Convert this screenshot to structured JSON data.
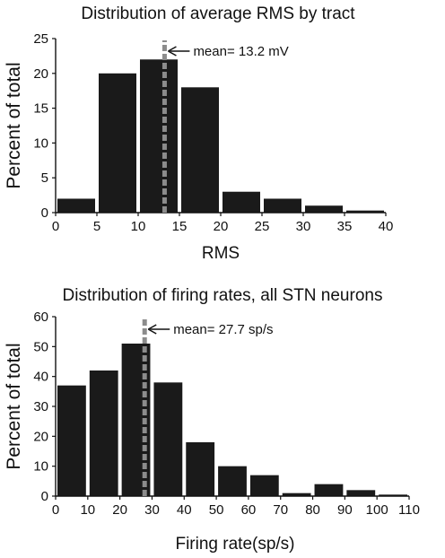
{
  "chart_data": [
    {
      "type": "bar",
      "title": "Distribution of average RMS by tract",
      "xlabel": "RMS",
      "ylabel": "Percent of total",
      "xlim": [
        0,
        40
      ],
      "ylim": [
        0,
        25
      ],
      "xticks": [
        0,
        5,
        10,
        15,
        20,
        25,
        30,
        35,
        40
      ],
      "yticks": [
        0,
        5,
        10,
        15,
        20,
        25
      ],
      "bin_width": 5,
      "bins": [
        {
          "x": 2.5,
          "value": 2
        },
        {
          "x": 7.5,
          "value": 20
        },
        {
          "x": 12.5,
          "value": 22
        },
        {
          "x": 17.5,
          "value": 18
        },
        {
          "x": 22.5,
          "value": 3
        },
        {
          "x": 27.5,
          "value": 2
        },
        {
          "x": 32.5,
          "value": 1
        },
        {
          "x": 37.5,
          "value": 0.3
        }
      ],
      "mean": {
        "value": 13.2,
        "label": "mean= 13.2 mV"
      },
      "grid": false,
      "colors": {
        "bar": "#1a1a1a",
        "mean_line": "#8c8c8c"
      }
    },
    {
      "type": "bar",
      "title": "Distribution of firing rates, all STN neurons",
      "xlabel": "Firing rate(sp/s)",
      "ylabel": "Percent of total",
      "xlim": [
        0,
        110
      ],
      "ylim": [
        0,
        60
      ],
      "xticks": [
        0,
        10,
        20,
        30,
        40,
        50,
        60,
        70,
        80,
        90,
        100,
        110
      ],
      "yticks": [
        0,
        10,
        20,
        30,
        40,
        50,
        60
      ],
      "bin_width": 10,
      "bins": [
        {
          "x": 5,
          "value": 37
        },
        {
          "x": 15,
          "value": 42
        },
        {
          "x": 25,
          "value": 51
        },
        {
          "x": 35,
          "value": 38
        },
        {
          "x": 45,
          "value": 18
        },
        {
          "x": 55,
          "value": 10
        },
        {
          "x": 65,
          "value": 7
        },
        {
          "x": 75,
          "value": 1
        },
        {
          "x": 85,
          "value": 4
        },
        {
          "x": 95,
          "value": 2
        },
        {
          "x": 105,
          "value": 0.5
        }
      ],
      "mean": {
        "value": 27.7,
        "label": "mean= 27.7 sp/s"
      },
      "grid": false,
      "colors": {
        "bar": "#1a1a1a",
        "mean_line": "#8c8c8c"
      }
    }
  ]
}
